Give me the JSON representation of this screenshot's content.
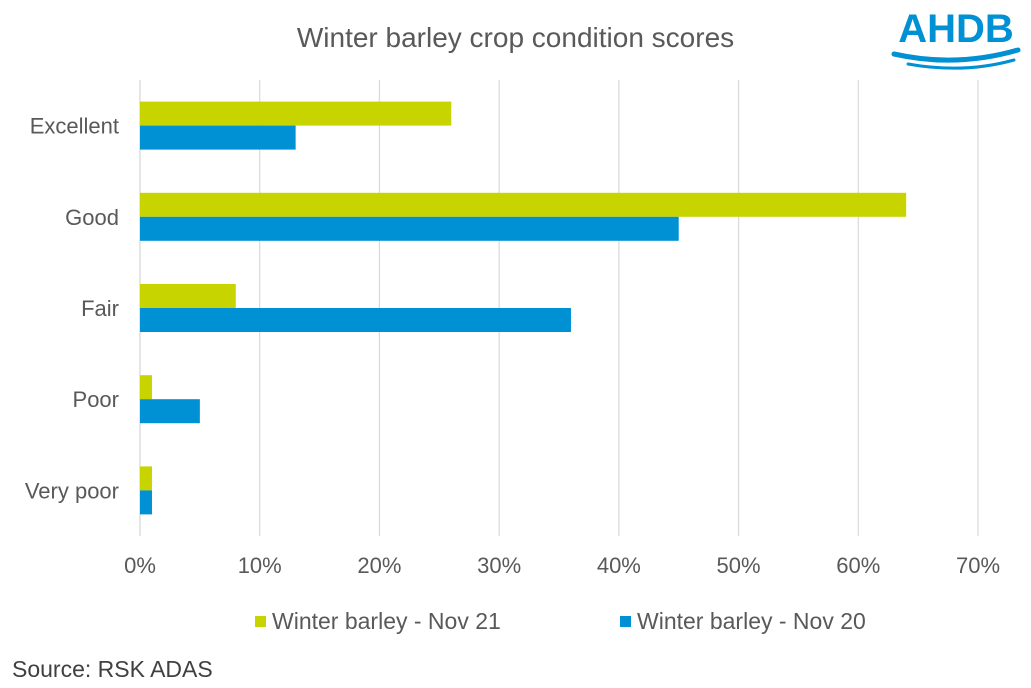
{
  "chart_data": {
    "type": "bar",
    "orientation": "horizontal",
    "title": "Winter barley crop condition scores",
    "categories": [
      "Excellent",
      "Good",
      "Fair",
      "Poor",
      "Very poor"
    ],
    "series": [
      {
        "name": "Winter barley - Nov 21",
        "color": "#c8d400",
        "values": [
          26,
          64,
          8,
          1,
          1
        ]
      },
      {
        "name": "Winter barley - Nov 20",
        "color": "#0090d4",
        "values": [
          13,
          45,
          36,
          5,
          1
        ]
      }
    ],
    "xlim": [
      0,
      70
    ],
    "xticks": [
      "0%",
      "10%",
      "20%",
      "30%",
      "40%",
      "50%",
      "60%",
      "70%"
    ],
    "grid": true,
    "legend": "bottom"
  },
  "source": "Source: RSK ADAS",
  "logo": {
    "text": "AHDB",
    "color": "#0090d4"
  }
}
